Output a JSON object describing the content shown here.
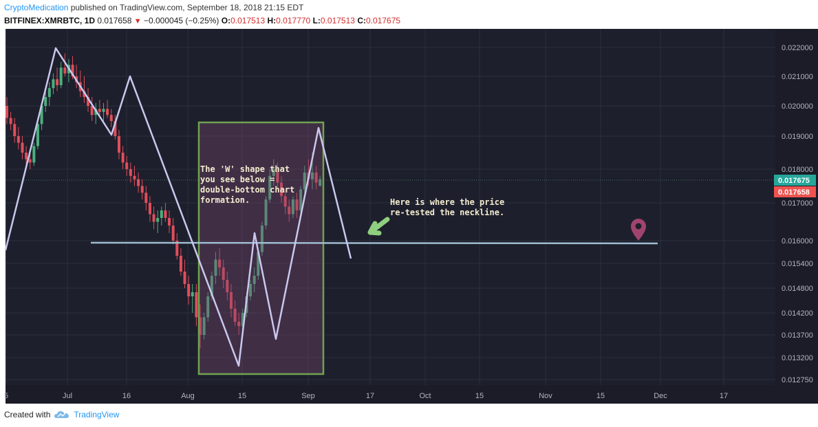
{
  "header": {
    "author": "CryptoMedication",
    "published": " published on TradingView.com, September 18, 2018 21:15 EDT",
    "symbol": "BITFINEX:XMRBTC, 1D",
    "last": "0.017658",
    "change": "−0.000045 (−0.25%)",
    "o_label": "O:",
    "o_value": "0.017513",
    "h_label": "H:",
    "h_value": "0.017770",
    "l_label": "L:",
    "l_value": "0.017513",
    "c_label": "C:",
    "c_value": "0.017675"
  },
  "footer": {
    "created": "Created with",
    "brand": "TradingView"
  },
  "colors": {
    "background": "#1e1f2c",
    "grid": "#2b2f3d",
    "up": "#4caf7d",
    "down": "#e04e5b",
    "pattern": "#c9c8ee",
    "neckline": "#9fbdd0",
    "box_stroke": "#6fa350",
    "annotation_text": "#f3eccf",
    "arrow": "#8fcf7f",
    "marker": "#a0446e"
  },
  "chart_data": {
    "type": "candlestick",
    "y_ticks": [
      "0.022000",
      "0.021000",
      "0.020000",
      "0.019000",
      "0.018000",
      "0.017000",
      "0.016000",
      "0.015400",
      "0.014800",
      "0.014200",
      "0.013700",
      "0.013200",
      "0.012750"
    ],
    "x_ticks": [
      "5",
      "Jul",
      "16",
      "Aug",
      "15",
      "Sep",
      "17",
      "Oct",
      "15",
      "Nov",
      "15",
      "Dec",
      "17"
    ],
    "price_labels": [
      {
        "value": "0.017675",
        "color": "#26a69a"
      },
      {
        "value": "0.017658",
        "color": "#ef5350"
      }
    ],
    "candles": [
      [
        0.02,
        0.0203,
        0.0194,
        0.0196
      ],
      [
        0.0196,
        0.0198,
        0.0192,
        0.0194
      ],
      [
        0.0194,
        0.0196,
        0.0188,
        0.019
      ],
      [
        0.019,
        0.0193,
        0.0186,
        0.0188
      ],
      [
        0.0188,
        0.019,
        0.0183,
        0.0185
      ],
      [
        0.0185,
        0.0187,
        0.0181,
        0.0183
      ],
      [
        0.0183,
        0.0185,
        0.018,
        0.0182
      ],
      [
        0.0182,
        0.0188,
        0.0181,
        0.0187
      ],
      [
        0.0187,
        0.0195,
        0.0186,
        0.0194
      ],
      [
        0.0194,
        0.0201,
        0.0192,
        0.02
      ],
      [
        0.02,
        0.0205,
        0.0198,
        0.0203
      ],
      [
        0.0203,
        0.0208,
        0.02,
        0.0206
      ],
      [
        0.0206,
        0.0211,
        0.0204,
        0.0209
      ],
      [
        0.0209,
        0.0213,
        0.0205,
        0.0207
      ],
      [
        0.0207,
        0.0215,
        0.0206,
        0.0213
      ],
      [
        0.0213,
        0.0218,
        0.021,
        0.0211
      ],
      [
        0.0211,
        0.0216,
        0.0208,
        0.0214
      ],
      [
        0.0214,
        0.0217,
        0.0209,
        0.021
      ],
      [
        0.021,
        0.0214,
        0.0206,
        0.0208
      ],
      [
        0.0208,
        0.0212,
        0.0203,
        0.0205
      ],
      [
        0.0205,
        0.021,
        0.0201,
        0.0203
      ],
      [
        0.0203,
        0.0206,
        0.0198,
        0.02
      ],
      [
        0.02,
        0.0203,
        0.0195,
        0.0197
      ],
      [
        0.0197,
        0.0201,
        0.0194,
        0.0199
      ],
      [
        0.0199,
        0.0202,
        0.0196,
        0.0198
      ],
      [
        0.0198,
        0.0201,
        0.0195,
        0.0199
      ],
      [
        0.0199,
        0.0202,
        0.0196,
        0.0197
      ],
      [
        0.0197,
        0.0199,
        0.0193,
        0.0195
      ],
      [
        0.0195,
        0.0197,
        0.0189,
        0.019
      ],
      [
        0.019,
        0.0192,
        0.0183,
        0.0185
      ],
      [
        0.0185,
        0.0187,
        0.018,
        0.0182
      ],
      [
        0.0182,
        0.0184,
        0.0178,
        0.018
      ],
      [
        0.018,
        0.0182,
        0.0176,
        0.0178
      ],
      [
        0.0178,
        0.0181,
        0.0175,
        0.0177
      ],
      [
        0.0177,
        0.0179,
        0.0173,
        0.0175
      ],
      [
        0.0175,
        0.0177,
        0.0171,
        0.0173
      ],
      [
        0.0173,
        0.0175,
        0.0168,
        0.017
      ],
      [
        0.017,
        0.0172,
        0.0165,
        0.0167
      ],
      [
        0.0167,
        0.0169,
        0.0163,
        0.0165
      ],
      [
        0.0165,
        0.0168,
        0.0162,
        0.0166
      ],
      [
        0.0166,
        0.0169,
        0.0164,
        0.0168
      ],
      [
        0.0168,
        0.017,
        0.0165,
        0.0166
      ],
      [
        0.0166,
        0.0168,
        0.0162,
        0.0164
      ],
      [
        0.0164,
        0.0166,
        0.0159,
        0.016
      ],
      [
        0.016,
        0.0162,
        0.0155,
        0.0156
      ],
      [
        0.0156,
        0.0158,
        0.0151,
        0.0152
      ],
      [
        0.0152,
        0.0155,
        0.0148,
        0.0149
      ],
      [
        0.0149,
        0.0151,
        0.0144,
        0.0146
      ],
      [
        0.0146,
        0.0149,
        0.0142,
        0.0147
      ],
      [
        0.0147,
        0.0149,
        0.0139,
        0.0141
      ],
      [
        0.0141,
        0.0144,
        0.0134,
        0.0137
      ],
      [
        0.0137,
        0.0142,
        0.0136,
        0.0141
      ],
      [
        0.0141,
        0.0147,
        0.014,
        0.0146
      ],
      [
        0.0146,
        0.0152,
        0.0145,
        0.0151
      ],
      [
        0.0151,
        0.0157,
        0.0149,
        0.0155
      ],
      [
        0.0155,
        0.0158,
        0.0151,
        0.0153
      ],
      [
        0.0153,
        0.0155,
        0.0148,
        0.015
      ],
      [
        0.015,
        0.0152,
        0.0145,
        0.0147
      ],
      [
        0.0147,
        0.0149,
        0.0141,
        0.0143
      ],
      [
        0.0143,
        0.0145,
        0.0139,
        0.014
      ],
      [
        0.014,
        0.0142,
        0.0137,
        0.0139
      ],
      [
        0.0139,
        0.0143,
        0.0138,
        0.0142
      ],
      [
        0.0142,
        0.0147,
        0.0141,
        0.0146
      ],
      [
        0.0146,
        0.015,
        0.0145,
        0.0149
      ],
      [
        0.0149,
        0.0153,
        0.0147,
        0.0151
      ],
      [
        0.0151,
        0.0158,
        0.015,
        0.0157
      ],
      [
        0.0157,
        0.0165,
        0.0156,
        0.0164
      ],
      [
        0.0164,
        0.0172,
        0.0163,
        0.0171
      ],
      [
        0.0171,
        0.018,
        0.017,
        0.0178
      ],
      [
        0.0178,
        0.0183,
        0.0175,
        0.018
      ],
      [
        0.018,
        0.0182,
        0.0174,
        0.0176
      ],
      [
        0.0176,
        0.0178,
        0.017,
        0.0172
      ],
      [
        0.0172,
        0.0174,
        0.0167,
        0.0169
      ],
      [
        0.0169,
        0.0171,
        0.0165,
        0.0167
      ],
      [
        0.0167,
        0.0172,
        0.0166,
        0.0171
      ],
      [
        0.0171,
        0.0173,
        0.0166,
        0.0168
      ],
      [
        0.0168,
        0.0175,
        0.0167,
        0.0174
      ],
      [
        0.0174,
        0.0181,
        0.0173,
        0.0179
      ],
      [
        0.0179,
        0.0183,
        0.0175,
        0.0177
      ],
      [
        0.0177,
        0.0185,
        0.0174,
        0.0179
      ],
      [
        0.0179,
        0.0181,
        0.0174,
        0.0176
      ],
      [
        0.0175,
        0.0178,
        0.0175,
        0.0177
      ]
    ]
  },
  "annotations": {
    "w_shape": [
      "The 'W' shape that",
      "you see below =",
      "double-bottom chart",
      "formation."
    ],
    "retest": [
      "Here is where the price",
      "re-tested the neckline."
    ]
  }
}
